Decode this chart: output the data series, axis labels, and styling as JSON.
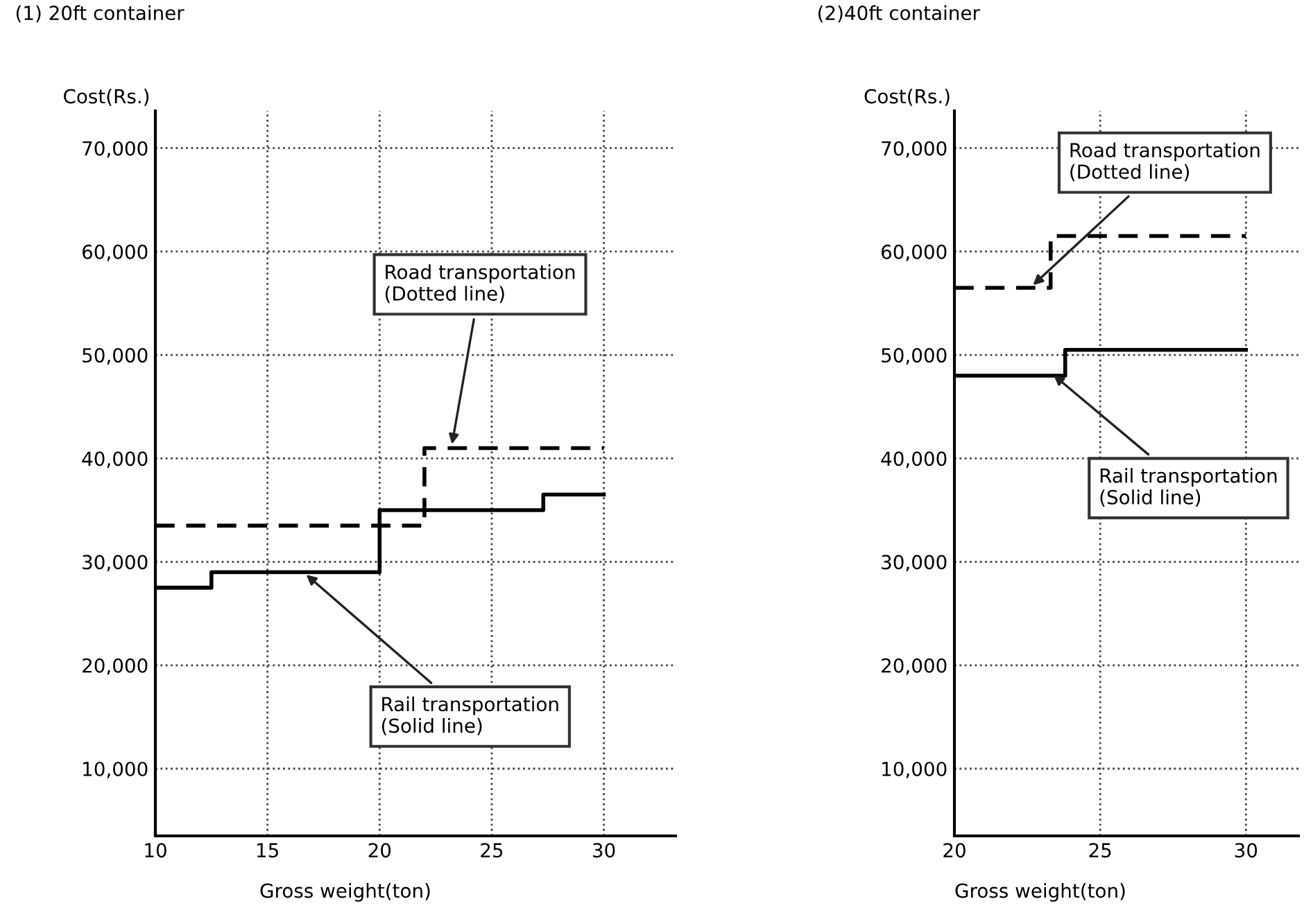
{
  "chart_data": [
    {
      "type": "step",
      "title": "(1) 20ft container",
      "xlabel": "Gross weight(ton)",
      "ylabel": "Cost(Rs.)",
      "xlim": [
        10,
        33.2
      ],
      "ylim": [
        3500,
        73600
      ],
      "xticks": [
        {
          "value": 10,
          "label": "10"
        },
        15,
        20,
        25,
        30
      ],
      "yticks": [
        {
          "value": 10000,
          "label": "10,000"
        },
        {
          "value": 20000,
          "label": "20,000"
        },
        {
          "value": 30000,
          "label": "30,000"
        },
        {
          "value": 40000,
          "label": "40,000"
        },
        {
          "value": 50000,
          "label": "50,000"
        },
        {
          "value": 60000,
          "label": "60,000"
        },
        {
          "value": 70000,
          "label": "70,000"
        }
      ],
      "grid": true,
      "legend": false,
      "series": [
        {
          "color": "#000000",
          "line_style": "dashed",
          "x": [
            10,
            22,
            30
          ],
          "values": [
            33500,
            41000,
            41000
          ]
        },
        {
          "color": "#000000",
          "line_style": "solid",
          "x": [
            10,
            12.5,
            20,
            27.3,
            30
          ],
          "values": [
            27500,
            29000,
            35000,
            36500,
            36500
          ]
        }
      ],
      "annotations": [
        {
          "text": "Road transportation\n(Dotted line)",
          "x": 23.2,
          "y": 41000
        },
        {
          "text": "Rail transportation\n(Solid line)",
          "x": 16.6,
          "y": 29000
        }
      ]
    },
    {
      "type": "step",
      "title": "(2)40ft container",
      "xlabel": "Gross weight(ton)",
      "ylabel": "Cost(Rs.)",
      "xlim": [
        20,
        31.8
      ],
      "ylim": [
        3500,
        73600
      ],
      "xticks": [
        20,
        25,
        30
      ],
      "yticks": [
        {
          "value": 10000,
          "label": "10,000"
        },
        {
          "value": 20000,
          "label": "20,000"
        },
        {
          "value": 30000,
          "label": "30,000"
        },
        {
          "value": 40000,
          "label": "40,000"
        },
        {
          "value": 50000,
          "label": "50,000"
        },
        {
          "value": 60000,
          "label": "60,000"
        },
        {
          "value": 70000,
          "label": "70,000"
        }
      ],
      "grid": true,
      "legend": false,
      "series": [
        {
          "color": "#000000",
          "line_style": "dashed",
          "x": [
            20,
            23.3,
            30
          ],
          "values": [
            56500,
            61500,
            61500
          ]
        },
        {
          "color": "#000000",
          "line_style": "solid",
          "x": [
            20,
            23.8,
            30
          ],
          "values": [
            48000,
            50500,
            50500
          ]
        }
      ],
      "annotations": [
        {
          "text": "Road transportation\n(Dotted line)",
          "x": 22.6,
          "y": 56500
        },
        {
          "text": "Rail transportation\n(Solid line)",
          "x": 23.3,
          "y": 48300
        }
      ]
    }
  ]
}
